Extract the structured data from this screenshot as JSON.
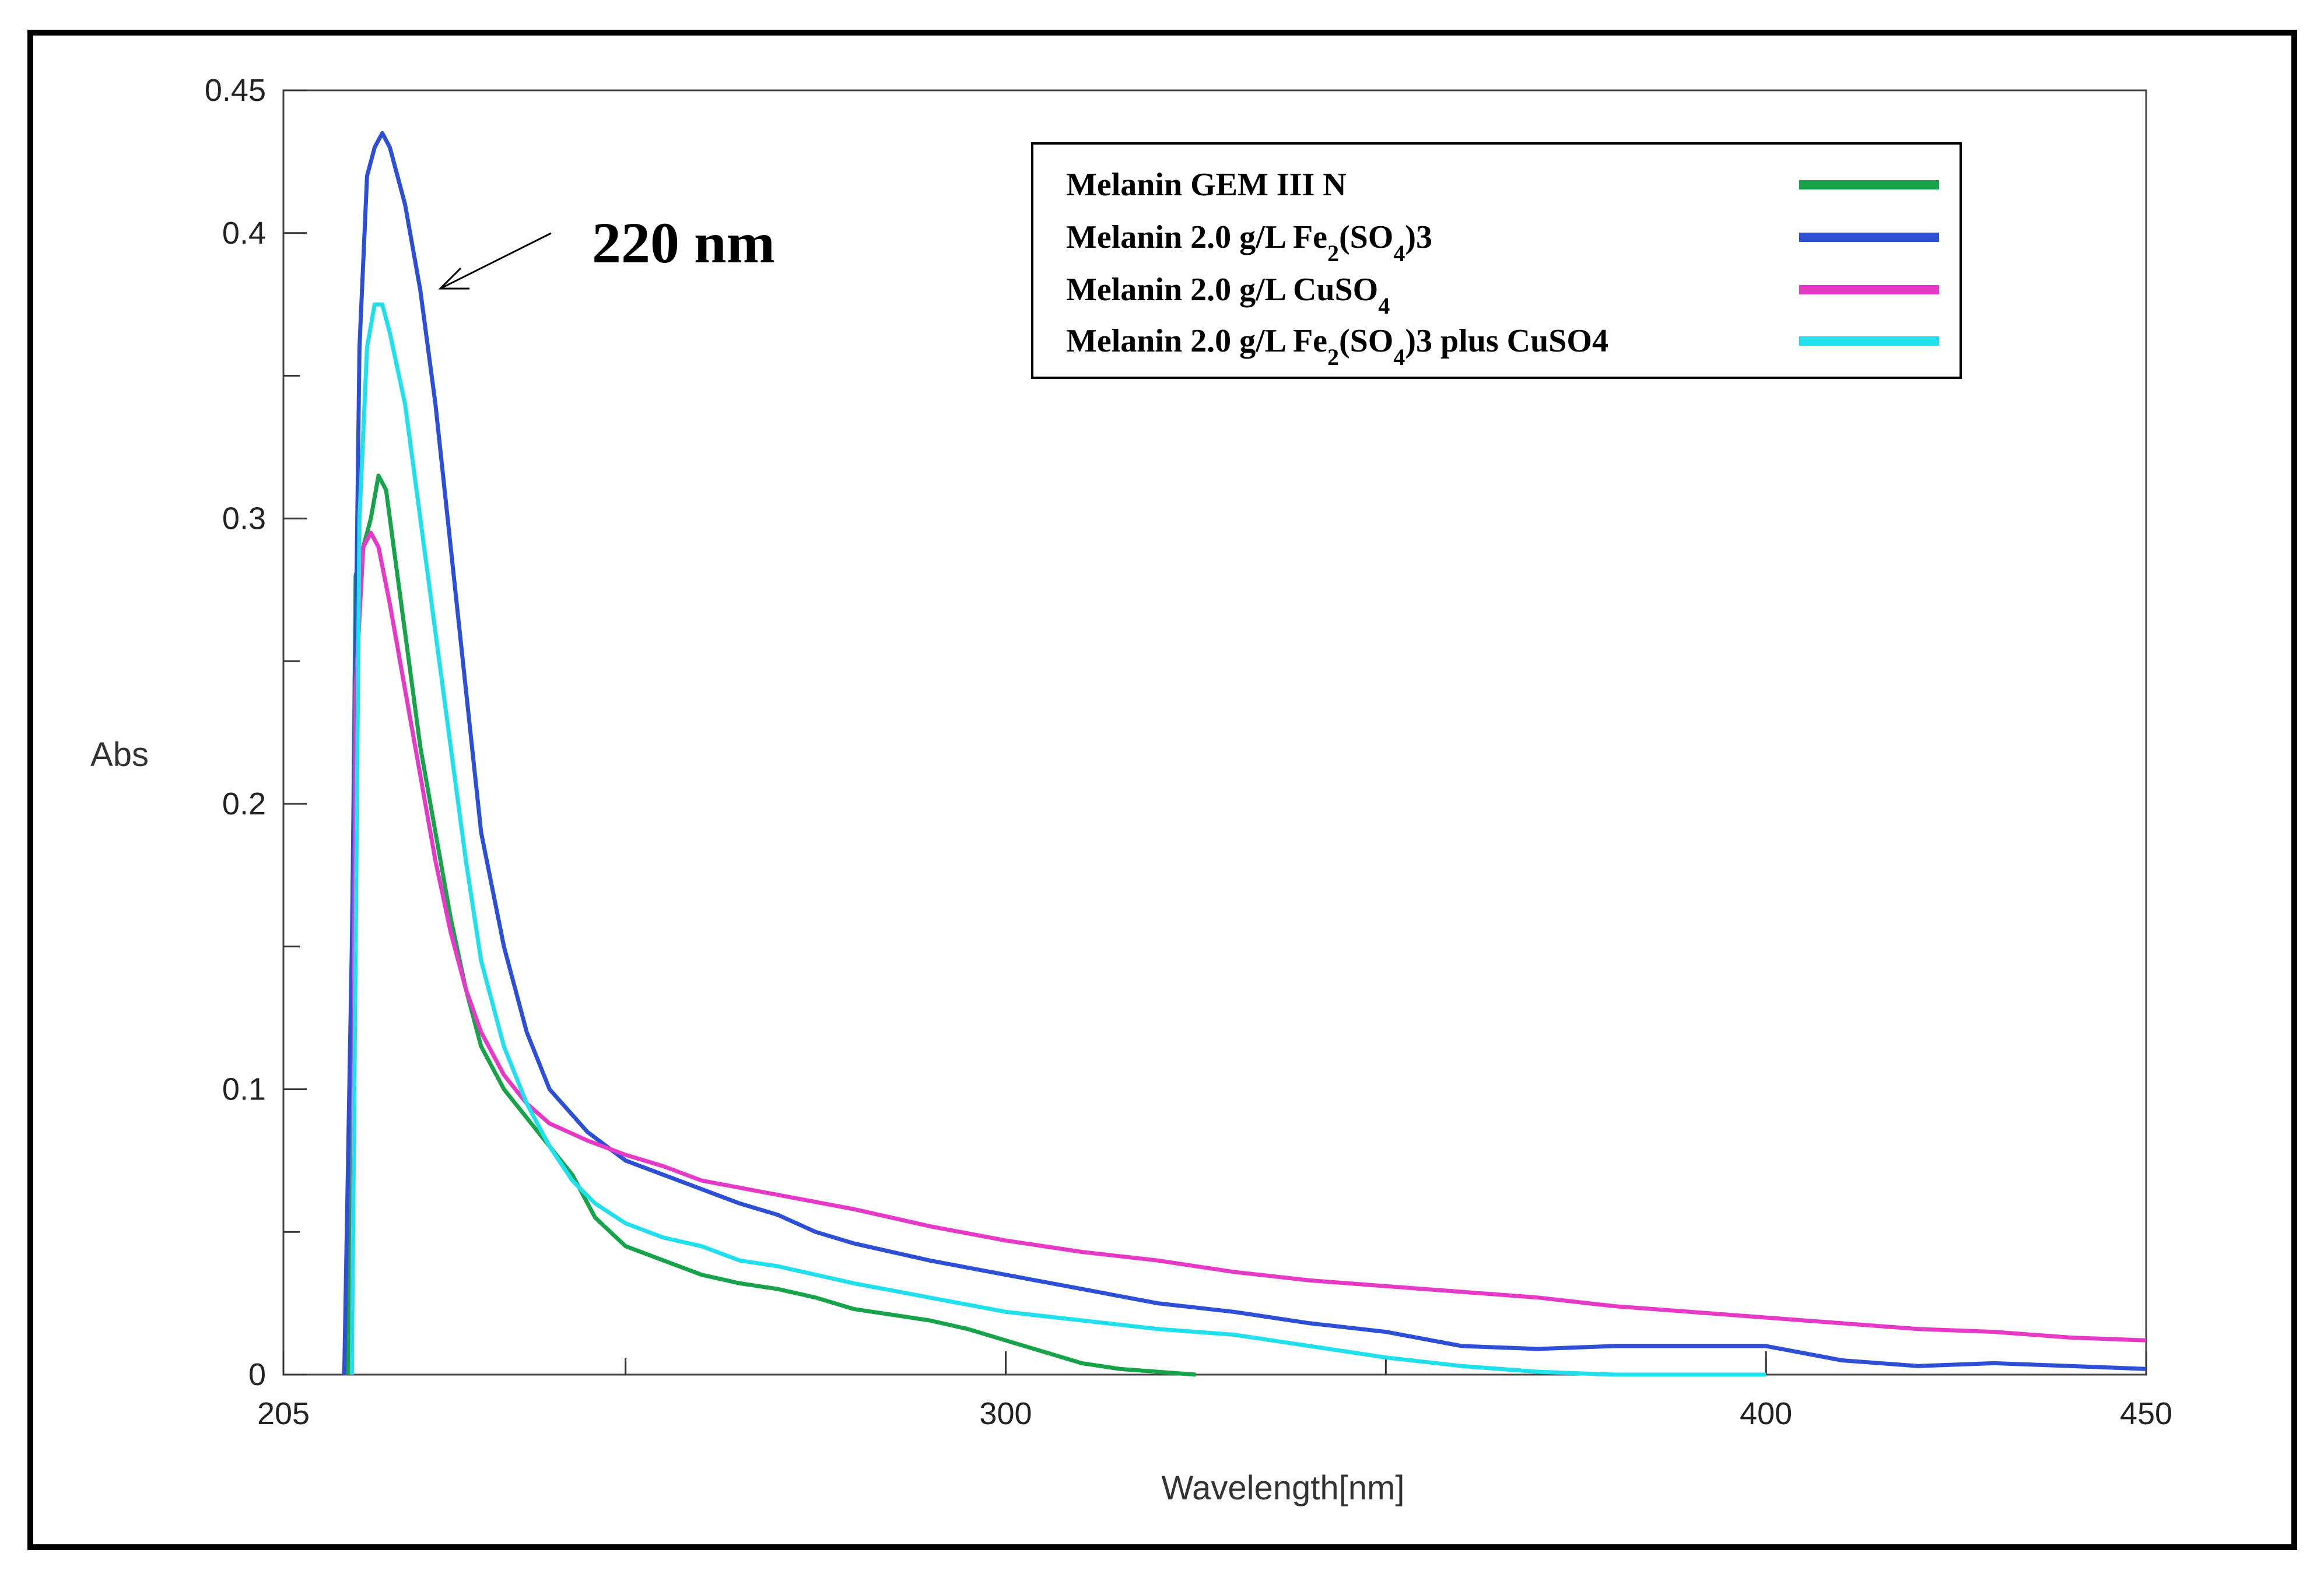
{
  "chart_data": {
    "type": "line",
    "xlabel": "Wavelength[nm]",
    "ylabel": "Abs",
    "xlim": [
      205,
      450
    ],
    "ylim": [
      0,
      0.45
    ],
    "x_ticks": [
      {
        "value": 205,
        "label": "205"
      },
      {
        "value": 300,
        "label": "300"
      },
      {
        "value": 400,
        "label": "400"
      },
      {
        "value": 450,
        "label": "450"
      }
    ],
    "y_ticks": [
      {
        "value": 0,
        "label": "0"
      },
      {
        "value": 0.1,
        "label": "0.1"
      },
      {
        "value": 0.2,
        "label": "0.2"
      },
      {
        "value": 0.3,
        "label": "0.3"
      },
      {
        "value": 0.4,
        "label": "0.4"
      },
      {
        "value": 0.45,
        "label": "0.45"
      }
    ],
    "annotation": {
      "text": "220 nm",
      "points_to": {
        "x": 221,
        "y": 0.38
      }
    },
    "legend": {
      "placement": "top-right"
    },
    "series": [
      {
        "name": "Melanin GEM III N",
        "label_main": "Melanin GEM III N",
        "label_sub1": "",
        "label_tail": "",
        "label_sub2": "",
        "label_tail2": "",
        "color": "#16a34a",
        "points": [
          [
            213.5,
            0
          ],
          [
            214.5,
            0.28
          ],
          [
            215.5,
            0.29
          ],
          [
            216.5,
            0.3
          ],
          [
            217.5,
            0.315
          ],
          [
            218.5,
            0.31
          ],
          [
            219.5,
            0.29
          ],
          [
            221,
            0.26
          ],
          [
            223,
            0.22
          ],
          [
            225,
            0.19
          ],
          [
            227,
            0.16
          ],
          [
            229,
            0.135
          ],
          [
            231,
            0.115
          ],
          [
            234,
            0.1
          ],
          [
            237,
            0.09
          ],
          [
            240,
            0.08
          ],
          [
            243,
            0.07
          ],
          [
            246,
            0.055
          ],
          [
            250,
            0.045
          ],
          [
            255,
            0.04
          ],
          [
            260,
            0.035
          ],
          [
            265,
            0.032
          ],
          [
            270,
            0.03
          ],
          [
            275,
            0.027
          ],
          [
            280,
            0.023
          ],
          [
            285,
            0.021
          ],
          [
            290,
            0.019
          ],
          [
            295,
            0.016
          ],
          [
            300,
            0.012
          ],
          [
            305,
            0.008
          ],
          [
            310,
            0.004
          ],
          [
            315,
            0.002
          ],
          [
            320,
            0.001
          ],
          [
            325,
            0
          ]
        ]
      },
      {
        "name": "Melanin 2.0 g/L Fe2(SO4)3",
        "label_main": "Melanin 2.0 g/L Fe",
        "label_sub1": "2",
        "label_tail": "(SO",
        "label_sub2": "4",
        "label_tail2": ")3",
        "color": "#2c4fd6",
        "points": [
          [
            213,
            0
          ],
          [
            214,
            0.15
          ],
          [
            215,
            0.36
          ],
          [
            216,
            0.42
          ],
          [
            217,
            0.43
          ],
          [
            218,
            0.435
          ],
          [
            219,
            0.43
          ],
          [
            221,
            0.41
          ],
          [
            223,
            0.38
          ],
          [
            225,
            0.34
          ],
          [
            227,
            0.29
          ],
          [
            229,
            0.24
          ],
          [
            231,
            0.19
          ],
          [
            234,
            0.15
          ],
          [
            237,
            0.12
          ],
          [
            240,
            0.1
          ],
          [
            245,
            0.085
          ],
          [
            250,
            0.075
          ],
          [
            255,
            0.07
          ],
          [
            260,
            0.065
          ],
          [
            265,
            0.06
          ],
          [
            270,
            0.056
          ],
          [
            275,
            0.05
          ],
          [
            280,
            0.046
          ],
          [
            290,
            0.04
          ],
          [
            300,
            0.035
          ],
          [
            310,
            0.03
          ],
          [
            320,
            0.025
          ],
          [
            330,
            0.022
          ],
          [
            340,
            0.018
          ],
          [
            350,
            0.015
          ],
          [
            360,
            0.01
          ],
          [
            370,
            0.009
          ],
          [
            380,
            0.01
          ],
          [
            390,
            0.01
          ],
          [
            400,
            0.01
          ],
          [
            410,
            0.005
          ],
          [
            420,
            0.003
          ],
          [
            430,
            0.004
          ],
          [
            440,
            0.003
          ],
          [
            450,
            0.002
          ]
        ]
      },
      {
        "name": "Melanin 2.0 g/L CuSO4",
        "label_main": "Melanin 2.0 g/L CuSO",
        "label_sub1": "4",
        "label_tail": "",
        "label_sub2": "",
        "label_tail2": "",
        "color": "#e639c8",
        "points": [
          [
            214,
            0
          ],
          [
            214.5,
            0.24
          ],
          [
            215.5,
            0.29
          ],
          [
            216.5,
            0.295
          ],
          [
            217.5,
            0.29
          ],
          [
            219,
            0.27
          ],
          [
            221,
            0.24
          ],
          [
            223,
            0.21
          ],
          [
            225,
            0.18
          ],
          [
            227,
            0.155
          ],
          [
            229,
            0.135
          ],
          [
            231,
            0.12
          ],
          [
            234,
            0.105
          ],
          [
            237,
            0.095
          ],
          [
            240,
            0.088
          ],
          [
            245,
            0.082
          ],
          [
            250,
            0.077
          ],
          [
            255,
            0.073
          ],
          [
            260,
            0.068
          ],
          [
            270,
            0.063
          ],
          [
            280,
            0.058
          ],
          [
            290,
            0.052
          ],
          [
            300,
            0.047
          ],
          [
            310,
            0.043
          ],
          [
            320,
            0.04
          ],
          [
            330,
            0.036
          ],
          [
            340,
            0.033
          ],
          [
            350,
            0.031
          ],
          [
            360,
            0.029
          ],
          [
            370,
            0.027
          ],
          [
            380,
            0.024
          ],
          [
            390,
            0.022
          ],
          [
            400,
            0.02
          ],
          [
            410,
            0.018
          ],
          [
            420,
            0.016
          ],
          [
            430,
            0.015
          ],
          [
            440,
            0.013
          ],
          [
            450,
            0.012
          ]
        ]
      },
      {
        "name": "Melanin 2.0 g/L Fe2(SO4)3 plus CuSO4",
        "label_main": "Melanin 2.0 g/L Fe",
        "label_sub1": "2",
        "label_tail": "(SO",
        "label_sub2": "4",
        "label_tail2": ")3 plus CuSO4",
        "color": "#1fe0ec",
        "points": [
          [
            214,
            0
          ],
          [
            215,
            0.3
          ],
          [
            216,
            0.36
          ],
          [
            217,
            0.375
          ],
          [
            218,
            0.375
          ],
          [
            219,
            0.365
          ],
          [
            221,
            0.34
          ],
          [
            223,
            0.3
          ],
          [
            225,
            0.26
          ],
          [
            227,
            0.22
          ],
          [
            229,
            0.18
          ],
          [
            231,
            0.145
          ],
          [
            234,
            0.115
          ],
          [
            237,
            0.095
          ],
          [
            240,
            0.08
          ],
          [
            243,
            0.068
          ],
          [
            246,
            0.06
          ],
          [
            250,
            0.053
          ],
          [
            255,
            0.048
          ],
          [
            260,
            0.045
          ],
          [
            265,
            0.04
          ],
          [
            270,
            0.038
          ],
          [
            280,
            0.032
          ],
          [
            290,
            0.027
          ],
          [
            300,
            0.022
          ],
          [
            310,
            0.019
          ],
          [
            320,
            0.016
          ],
          [
            330,
            0.014
          ],
          [
            340,
            0.01
          ],
          [
            350,
            0.006
          ],
          [
            360,
            0.003
          ],
          [
            370,
            0.001
          ],
          [
            380,
            0
          ],
          [
            400,
            0
          ]
        ]
      }
    ]
  }
}
